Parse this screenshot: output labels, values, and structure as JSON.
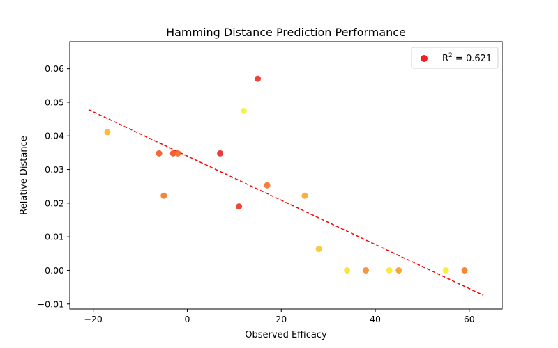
{
  "chart_data": {
    "type": "scatter",
    "title": "Hamming Distance Prediction Performance",
    "xlabel": "Observed Efficacy",
    "ylabel": "Relative Distance",
    "xlim": [
      -25,
      67
    ],
    "ylim": [
      -0.0115,
      0.068
    ],
    "xticks": [
      -20,
      0,
      20,
      40,
      60
    ],
    "yticks": [
      -0.01,
      0.0,
      0.01,
      0.02,
      0.03,
      0.04,
      0.05,
      0.06
    ],
    "xtick_labels": [
      "−20",
      "0",
      "20",
      "40",
      "60"
    ],
    "ytick_labels": [
      "−0.01",
      "0.00",
      "0.01",
      "0.02",
      "0.03",
      "0.04",
      "0.05",
      "0.06"
    ],
    "legend": {
      "placement": "top-right",
      "label_prefix": "R",
      "label_sup": "2",
      "label_suffix": " = 0.621",
      "marker_color": "#ee2222"
    },
    "grid": false,
    "points": [
      {
        "x": -17,
        "y": 0.0411,
        "color": "#fbb624"
      },
      {
        "x": -6,
        "y": 0.0348,
        "color": "#ef5a24"
      },
      {
        "x": -5,
        "y": 0.0222,
        "color": "#f47a24"
      },
      {
        "x": -3,
        "y": 0.0348,
        "color": "#ef5024"
      },
      {
        "x": -2,
        "y": 0.0348,
        "color": "#f06628"
      },
      {
        "x": 7,
        "y": 0.0348,
        "color": "#ec2624"
      },
      {
        "x": 11,
        "y": 0.019,
        "color": "#ec3224"
      },
      {
        "x": 12,
        "y": 0.0474,
        "color": "#faf228"
      },
      {
        "x": 15,
        "y": 0.057,
        "color": "#ec2e24"
      },
      {
        "x": 17,
        "y": 0.0253,
        "color": "#f07228"
      },
      {
        "x": 25,
        "y": 0.0222,
        "color": "#f8a828"
      },
      {
        "x": 28,
        "y": 0.0064,
        "color": "#f9c42c"
      },
      {
        "x": 34,
        "y": 0.0,
        "color": "#fbe02c"
      },
      {
        "x": 38,
        "y": 0.0,
        "color": "#f48a28"
      },
      {
        "x": 43,
        "y": 0.0,
        "color": "#faea28"
      },
      {
        "x": 45,
        "y": 0.0,
        "color": "#f89a28"
      },
      {
        "x": 55,
        "y": 0.0,
        "color": "#fbec28"
      },
      {
        "x": 59,
        "y": 0.0,
        "color": "#f27a28"
      }
    ],
    "trend_line": {
      "color": "#ff0000",
      "style": "dashed",
      "x": [
        -21,
        63
      ],
      "y": [
        0.0478,
        -0.0074
      ]
    }
  }
}
